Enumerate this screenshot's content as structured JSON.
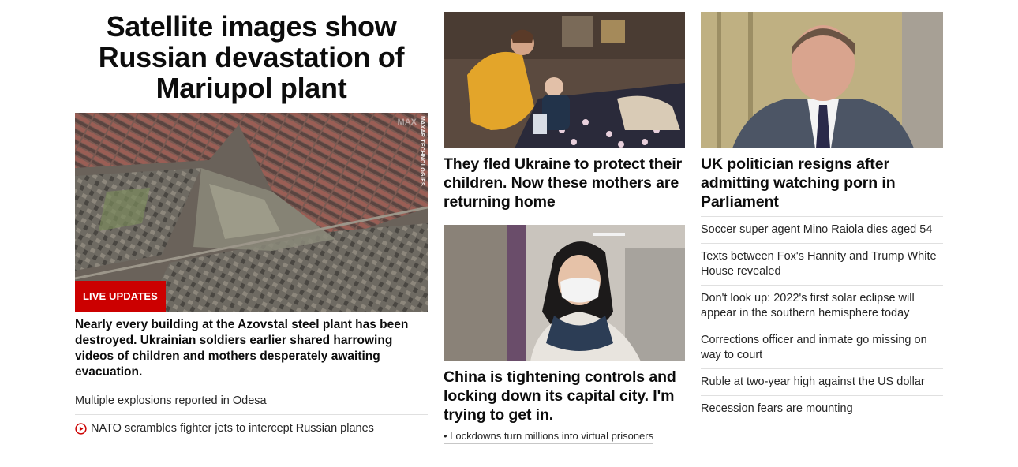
{
  "hero": {
    "title": "Satellite images show Russian devastation of Mariupol plant",
    "image_credit": "MAXAR TECHNOLOGIES",
    "image_watermark": "MAX",
    "badge": "LIVE UPDATES",
    "description": "Nearly every building at the Azovstal steel plant has been destroyed. Ukrainian soldiers earlier shared harrowing videos of children and mothers desperately awaiting evacuation.",
    "links": [
      {
        "text": "Multiple explosions reported in Odesa",
        "icon": ""
      },
      {
        "text": "NATO scrambles fighter jets to intercept Russian planes",
        "icon": "play-icon"
      }
    ]
  },
  "middle": {
    "card1": {
      "title": "They fled Ukraine to protect their children. Now these mothers are returning home"
    },
    "card2": {
      "title": "China is tightening controls and locking down its capital city. I'm trying to get in.",
      "sublink": "• Lockdowns turn millions into virtual prisoners"
    }
  },
  "right": {
    "card": {
      "title": "UK politician resigns after admitting watching porn in Parliament"
    },
    "links": [
      "Soccer super agent Mino Raiola dies aged 54",
      "Texts between Fox's Hannity and Trump White House revealed",
      "Don't look up: 2022's first solar eclipse will appear in the southern hemisphere today",
      "Corrections officer and inmate go missing on way to court",
      "Ruble at two-year high against the US dollar",
      "Recession fears are mounting"
    ]
  },
  "colors": {
    "accent": "#cc0000",
    "text": "#0c0c0c",
    "divider": "#e0e0e0"
  }
}
